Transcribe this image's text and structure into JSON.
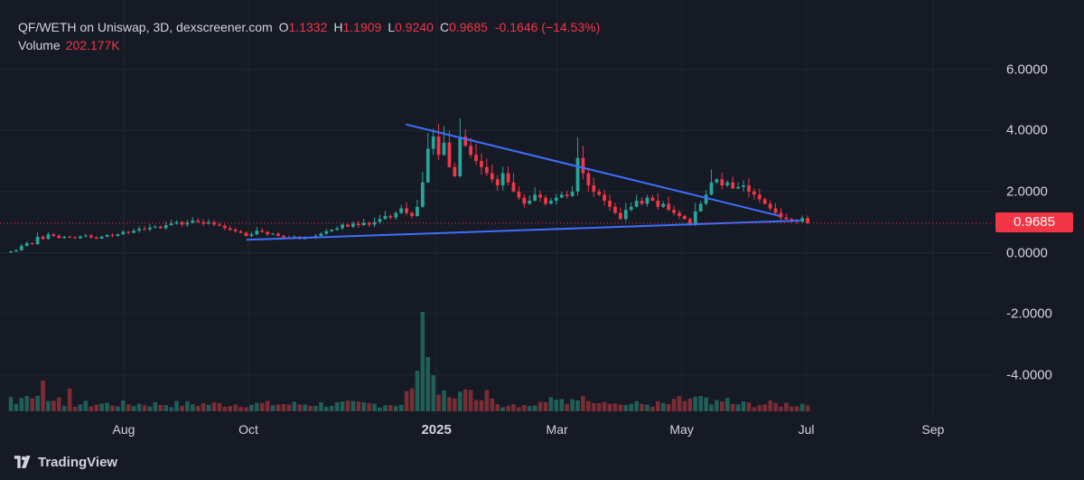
{
  "header": {
    "symbol_line": "QF/WETH on Uniswap, 3D, dexscreener.com",
    "ohlc": [
      {
        "key": "O",
        "value": "1.1332"
      },
      {
        "key": "H",
        "value": "1.1909"
      },
      {
        "key": "L",
        "value": "0.9240"
      },
      {
        "key": "C",
        "value": "0.9685"
      }
    ],
    "change": "-0.1646 (−14.53%)",
    "volume_label": "Volume",
    "volume_value": "202.177K"
  },
  "price_tag": "0.9685",
  "brand": "TradingView",
  "colors": {
    "background": "#161a25",
    "up": "#26a69a",
    "down": "#f23645",
    "up_volume": "#1f5f58",
    "down_volume": "#7a2d35",
    "trendline": "#3d6fff",
    "grid": "#222631"
  },
  "chart_data": {
    "type": "candlestick",
    "y_axis": {
      "tick_labels": [
        "6.0000",
        "4.0000",
        "2.0000",
        "0.0000",
        "-2.0000",
        "-4.0000"
      ],
      "tick_values": [
        6,
        4,
        2,
        0,
        -2,
        -4
      ]
    },
    "x_axis": {
      "tick_labels": [
        "Aug",
        "Oct",
        "2025",
        "Mar",
        "May",
        "Jul",
        "Sep"
      ],
      "tick_dates": [
        "2024-08-01",
        "2024-10-01",
        "2025-01-01",
        "2025-03-01",
        "2025-05-01",
        "2025-07-01",
        "2025-09-01"
      ]
    },
    "last_price": 0.9685,
    "price_line_style": "dotted",
    "trendlines": [
      {
        "from": {
          "date": "2024-12-17",
          "value": 4.2
        },
        "to": {
          "date": "2025-06-18",
          "value": 1.2
        }
      },
      {
        "from": {
          "date": "2024-09-30",
          "value": 0.42
        },
        "to": {
          "date": "2025-06-28",
          "value": 1.05
        }
      }
    ],
    "closes": [
      0.04,
      0.08,
      0.22,
      0.31,
      0.28,
      0.52,
      0.45,
      0.6,
      0.55,
      0.48,
      0.52,
      0.5,
      0.47,
      0.53,
      0.56,
      0.5,
      0.46,
      0.52,
      0.58,
      0.55,
      0.6,
      0.68,
      0.65,
      0.72,
      0.78,
      0.76,
      0.82,
      0.85,
      0.8,
      0.9,
      0.95,
      1.0,
      0.92,
      0.98,
      1.05,
      1.0,
      0.95,
      1.0,
      0.92,
      0.88,
      0.8,
      0.75,
      0.7,
      0.65,
      0.55,
      0.6,
      0.72,
      0.68,
      0.6,
      0.62,
      0.55,
      0.5,
      0.48,
      0.52,
      0.45,
      0.5,
      0.48,
      0.55,
      0.62,
      0.7,
      0.75,
      0.8,
      0.92,
      0.85,
      0.95,
      0.9,
      0.98,
      0.92,
      1.0,
      1.1,
      1.2,
      1.15,
      1.3,
      1.45,
      1.3,
      1.2,
      1.5,
      2.3,
      3.4,
      3.8,
      3.2,
      3.6,
      2.8,
      2.5,
      3.8,
      3.5,
      3.2,
      3.0,
      2.8,
      2.6,
      2.4,
      2.2,
      2.6,
      2.3,
      2.0,
      1.8,
      1.6,
      1.7,
      1.9,
      1.8,
      1.6,
      1.7,
      1.8,
      1.9,
      1.85,
      2.0,
      3.1,
      2.6,
      2.2,
      2.0,
      1.9,
      1.7,
      1.5,
      1.3,
      1.1,
      1.4,
      1.5,
      1.7,
      1.6,
      1.8,
      1.7,
      1.5,
      1.6,
      1.4,
      1.3,
      1.2,
      1.1,
      0.95,
      1.35,
      1.6,
      1.9,
      2.3,
      2.4,
      2.2,
      2.3,
      2.1,
      2.15,
      2.2,
      2.0,
      1.9,
      1.75,
      1.6,
      1.45,
      1.3,
      1.15,
      1.1,
      1.05,
      1.02,
      1.13,
      0.97
    ]
  }
}
